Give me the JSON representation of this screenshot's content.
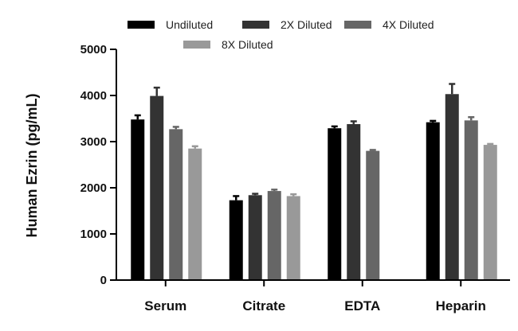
{
  "chart_data": {
    "type": "bar",
    "categories": [
      "Serum",
      "Citrate",
      "EDTA",
      "Heparin"
    ],
    "ylabel": "Human Ezrin (pg/mL)",
    "ylim": [
      0,
      5000
    ],
    "yticks": [
      0,
      1000,
      2000,
      3000,
      4000,
      5000
    ],
    "legend_position": "top",
    "series": [
      {
        "name": "Undiluted",
        "color": "#000000",
        "values": [
          3480,
          1730,
          3290,
          3420
        ],
        "errors": [
          90,
          90,
          40,
          30
        ]
      },
      {
        "name": "2X Diluted",
        "color": "#333333",
        "values": [
          3990,
          1840,
          3380,
          4030
        ],
        "errors": [
          180,
          30,
          60,
          220
        ]
      },
      {
        "name": "4X Diluted",
        "color": "#666666",
        "values": [
          3270,
          1930,
          2800,
          3460
        ],
        "errors": [
          50,
          30,
          20,
          70
        ]
      },
      {
        "name": "8X Diluted",
        "color": "#999999",
        "values": [
          2850,
          1820,
          null,
          2930
        ],
        "errors": [
          50,
          40,
          0,
          20
        ]
      }
    ]
  }
}
